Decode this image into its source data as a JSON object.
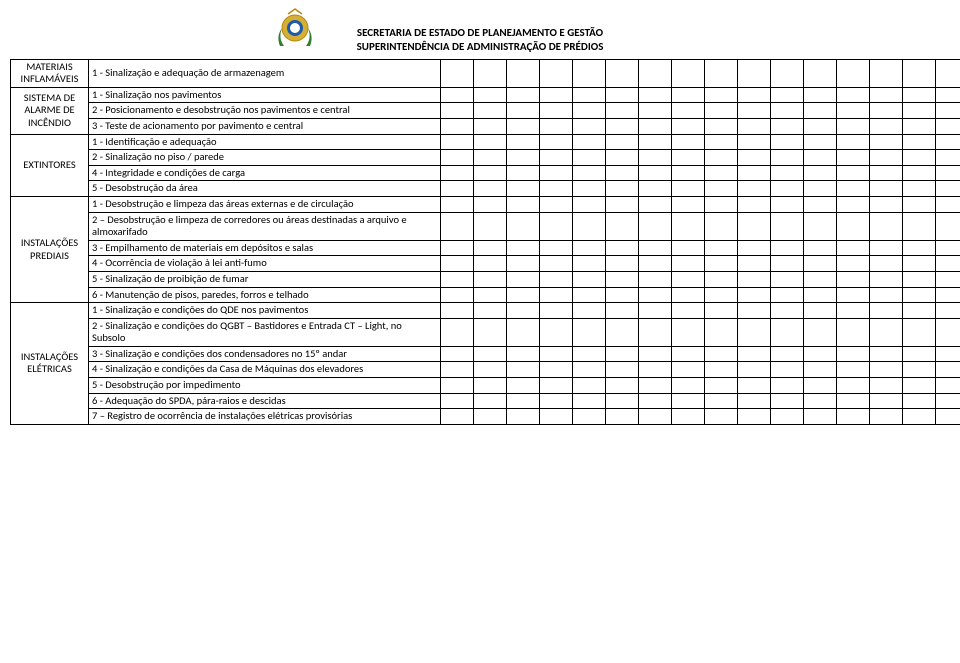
{
  "header": {
    "line1": "SECRETARIA DE ESTADO DE PLANEJAMENTO E GESTÃO",
    "line2": "SUPERINTENDÊNCIA DE ADMINISTRAÇÃO DE PRÉDIOS"
  },
  "crest": {
    "outer_color": "#d4af37",
    "inner_color": "#1e5aa8",
    "leaf_color": "#2e7d32"
  },
  "columns_blank_count": 16,
  "sections": [
    {
      "name": "mat-inflamaveis",
      "label": "MATERIAIS\nINFLAMÁVEIS",
      "items": [
        "1 - Sinalização e adequação de armazenagem"
      ]
    },
    {
      "name": "sistema-alarme",
      "label": "SISTEMA DE\nALARME DE\nINCÊNDIO",
      "items": [
        "1 - Sinalização nos pavimentos",
        "2 - Posicionamento e desobstrução nos pavimentos e central",
        "3 - Teste de acionamento por pavimento e central"
      ]
    },
    {
      "name": "extintores",
      "label": "EXTINTORES",
      "items": [
        "1 - Identificação e adequação",
        "2 - Sinalização no piso / parede",
        "4 - Integridade e condições de carga",
        "5 - Desobstrução da área"
      ]
    },
    {
      "name": "inst-prediais",
      "label": "INSTALAÇÕES\nPREDIAIS",
      "items": [
        "1 - Desobstrução e limpeza das áreas externas e de circulação",
        "2 – Desobstrução e limpeza de corredores ou áreas destinadas a arquivo e almoxarifado",
        "3 - Empilhamento de materiais em depósitos e salas",
        "4 - Ocorrência de violação à lei anti-fumo",
        "5 - Sinalização de proibição de fumar",
        "6 - Manutenção de pisos, paredes, forros e telhado"
      ]
    },
    {
      "name": "inst-eletricas",
      "label": "INSTALAÇÕES\nELÉTRICAS",
      "items": [
        "1 - Sinalização e condições do QDE nos pavimentos",
        "2 - Sinalização e condições do QGBT – Bastidores e Entrada CT – Light, no Subsolo",
        "3 - Sinalização e condições dos condensadores no 15º andar",
        "4 - Sinalização e condições da Casa de Máquinas dos elevadores",
        "5 - Desobstrução por impedimento",
        "6 - Adequação do SPDA, pára-raios e descidas",
        "7 – Registro de ocorrência de instalações elétricas provisórias"
      ]
    }
  ]
}
